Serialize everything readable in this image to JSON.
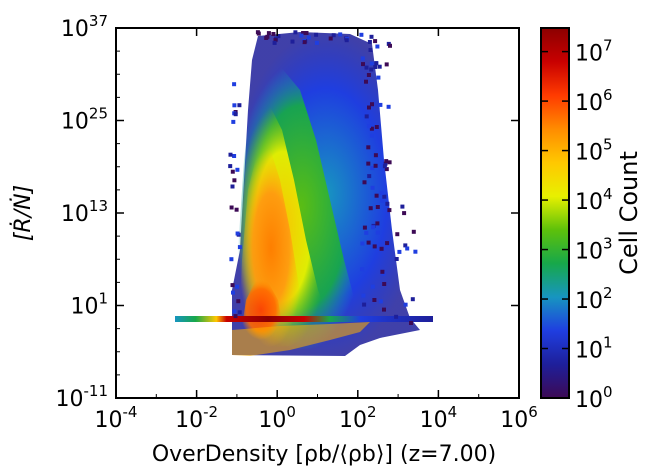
{
  "chart_data": {
    "type": "heatmap",
    "title": "",
    "xlabel": "OverDensity",
    "xlabel_math": "[ρb/⟨ρb⟩]",
    "xlabel_suffix": "(z=7.00)",
    "ylabel": "[Ṙ/Ṅ]",
    "xscale": "log",
    "yscale": "log",
    "xlim": [
      0.0001,
      1000000
    ],
    "ylim": [
      1e-11,
      1e+37
    ],
    "x_ticks": [
      {
        "value": 0.0001,
        "base": "10",
        "exp": "-4"
      },
      {
        "value": 0.01,
        "base": "10",
        "exp": "-2"
      },
      {
        "value": 1,
        "base": "10",
        "exp": "0"
      },
      {
        "value": 100,
        "base": "10",
        "exp": "2"
      },
      {
        "value": 10000,
        "base": "10",
        "exp": "4"
      },
      {
        "value": 1000000,
        "base": "10",
        "exp": "6"
      }
    ],
    "y_ticks": [
      {
        "value": 1e-11,
        "base": "10",
        "exp": "-11"
      },
      {
        "value": 10,
        "base": "10",
        "exp": "1"
      },
      {
        "value": 10000000000000.0,
        "base": "10",
        "exp": "13"
      },
      {
        "value": 1e+25,
        "base": "10",
        "exp": "25"
      },
      {
        "value": 1e+37,
        "base": "10",
        "exp": "37"
      }
    ],
    "colorbar": {
      "label": "Cell Count",
      "scale": "log",
      "range": [
        1,
        30000000
      ],
      "ticks": [
        {
          "value": 1,
          "base": "10",
          "exp": "0"
        },
        {
          "value": 10,
          "base": "10",
          "exp": "1"
        },
        {
          "value": 100,
          "base": "10",
          "exp": "2"
        },
        {
          "value": 1000,
          "base": "10",
          "exp": "3"
        },
        {
          "value": 10000,
          "base": "10",
          "exp": "4"
        },
        {
          "value": 100000,
          "base": "10",
          "exp": "5"
        },
        {
          "value": 1000000,
          "base": "10",
          "exp": "6"
        },
        {
          "value": 10000000,
          "base": "10",
          "exp": "7"
        }
      ],
      "colormap": [
        "#3d0a55",
        "#1e1f9a",
        "#1f3ee0",
        "#1795c0",
        "#17a84a",
        "#5ec10a",
        "#e8f000",
        "#ffc800",
        "#ff8c00",
        "#ff3b00",
        "#c80000",
        "#8c0000"
      ]
    },
    "features": {
      "main_plume": {
        "x_range": [
          0.1,
          1000
        ],
        "y_range": [
          1e-08,
          1e+37
        ],
        "peak_x": 1,
        "peak_y": 1,
        "peak_count": 10000000
      },
      "horizontal_band": {
        "y": 1,
        "x_range": [
          0.005,
          10000
        ],
        "peak_count": 20000000
      },
      "lower_edge": {
        "x_range": [
          0.1,
          100
        ],
        "y_range": [
          1e-08,
          0.01
        ]
      }
    }
  }
}
